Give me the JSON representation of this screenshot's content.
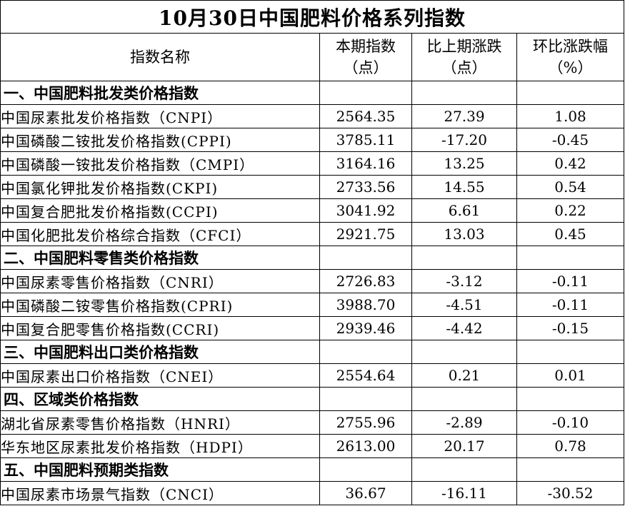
{
  "title": "10月30日中国肥料价格系列指数",
  "headers": {
    "name": "指数名称",
    "current_line1": "本期指数",
    "current_line2": "（点）",
    "change_line1": "比上期涨跌",
    "change_line2": "（点）",
    "pct_line1": "环比涨跌幅",
    "pct_line2": "（%）"
  },
  "sections": [
    {
      "title": "一、中国肥料批发类价格指数",
      "rows": [
        {
          "name": "中国尿素批发价格指数（CNPI）",
          "value": "2564.35",
          "change": "27.39",
          "pct": "1.08"
        },
        {
          "name": "中国磷酸二铵批发价格指数(CPPI)",
          "value": "3785.11",
          "change": "-17.20",
          "pct": "-0.45"
        },
        {
          "name": "中国磷酸一铵批发价格指数（CMPI）",
          "value": "3164.16",
          "change": "13.25",
          "pct": "0.42"
        },
        {
          "name": "中国氯化钾批发价格指数(CKPI)",
          "value": "2733.56",
          "change": "14.55",
          "pct": "0.54"
        },
        {
          "name": "中国复合肥批发价格指数(CCPI)",
          "value": "3041.92",
          "change": "6.61",
          "pct": "0.22"
        },
        {
          "name": "中国化肥批发价格综合指数（CFCI）",
          "value": "2921.75",
          "change": "13.03",
          "pct": "0.45"
        }
      ]
    },
    {
      "title": "二、中国肥料零售类价格指数",
      "rows": [
        {
          "name": "中国尿素零售价格指数（CNRI）",
          "value": "2726.83",
          "change": "-3.12",
          "pct": "-0.11"
        },
        {
          "name": "中国磷酸二铵零售价格指数(CPRI)",
          "value": "3988.70",
          "change": "-4.51",
          "pct": "-0.11"
        },
        {
          "name": "中国复合肥零售价格指数(CCRI)",
          "value": "2939.46",
          "change": "-4.42",
          "pct": "-0.15"
        }
      ]
    },
    {
      "title": "三、中国肥料出口类价格指数",
      "rows": [
        {
          "name": "中国尿素出口价格指数（CNEI）",
          "value": "2554.64",
          "change": "0.21",
          "pct": "0.01"
        }
      ]
    },
    {
      "title": "四、区域类价格指数",
      "rows": [
        {
          "name": "湖北省尿素零售价格指数（HNRI）",
          "value": "2755.96",
          "change": "-2.89",
          "pct": "-0.10"
        },
        {
          "name": "华东地区尿素批发价格指数（HDPI）",
          "value": "2613.00",
          "change": "20.17",
          "pct": "0.78"
        }
      ]
    },
    {
      "title": "五、中国肥料预期类指数",
      "rows": [
        {
          "name": "中国尿素市场景气指数（CNCI）",
          "value": "36.67",
          "change": "-16.11",
          "pct": "-30.52"
        }
      ]
    }
  ]
}
